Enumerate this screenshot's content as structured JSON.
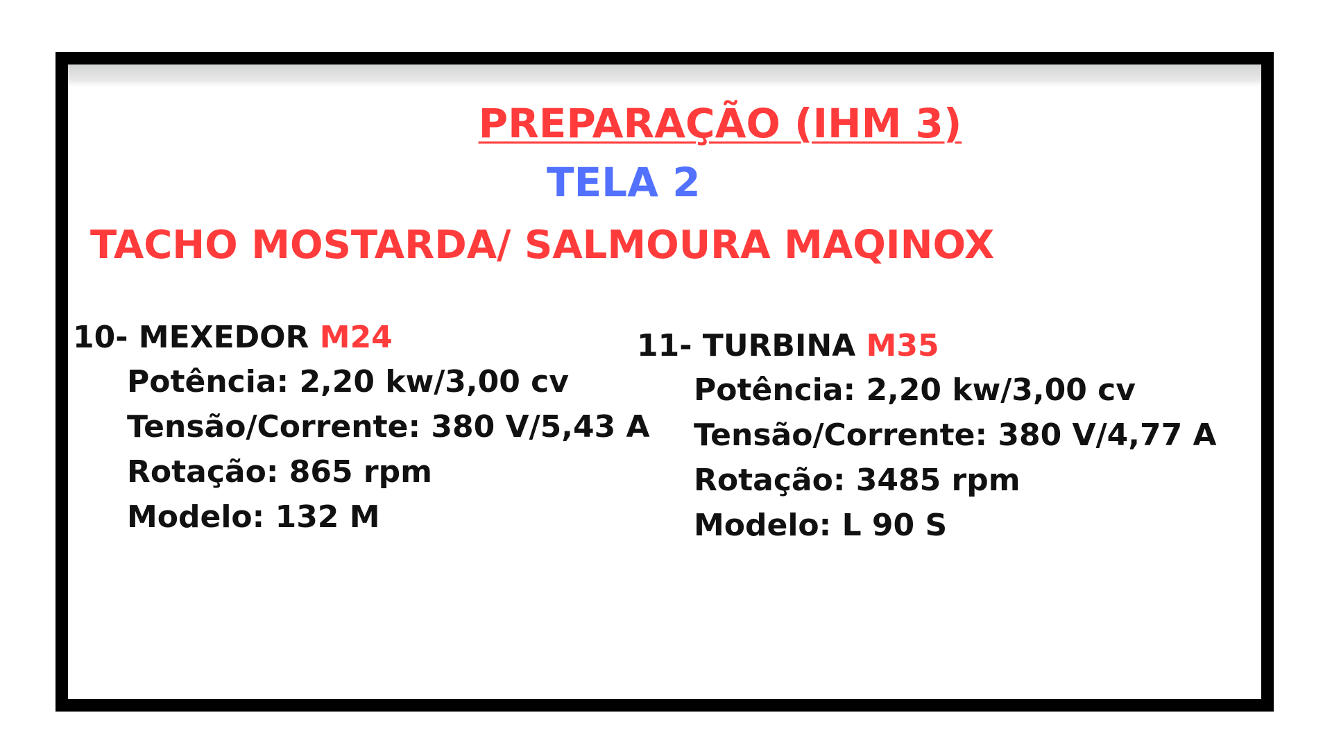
{
  "title": "PREPARAÇÃO (IHM 3)",
  "subtitle": "TELA 2",
  "equipment": "TACHO MOSTARDA/ SALMOURA MAQINOX",
  "motors": [
    {
      "heading": "10- MEXEDOR",
      "code": "M24",
      "power": "Potência: 2,20 kw/3,00 cv",
      "voltage_current": "Tensão/Corrente: 380 V/5,43 A",
      "rotation": "Rotação: 865 rpm",
      "model": "Modelo: 132 M"
    },
    {
      "heading": "11- TURBINA",
      "code": "M35",
      "power": "Potência: 2,20 kw/3,00 cv",
      "voltage_current": "Tensão/Corrente: 380 V/4,77 A",
      "rotation": "Rotação: 3485 rpm",
      "model": "Modelo: L 90 S"
    }
  ],
  "colors": {
    "title": "#ff3b3b",
    "subtitle": "#5271ff",
    "motor_code": "#ff3b3b",
    "frame": "#000000",
    "text": "#111111"
  }
}
